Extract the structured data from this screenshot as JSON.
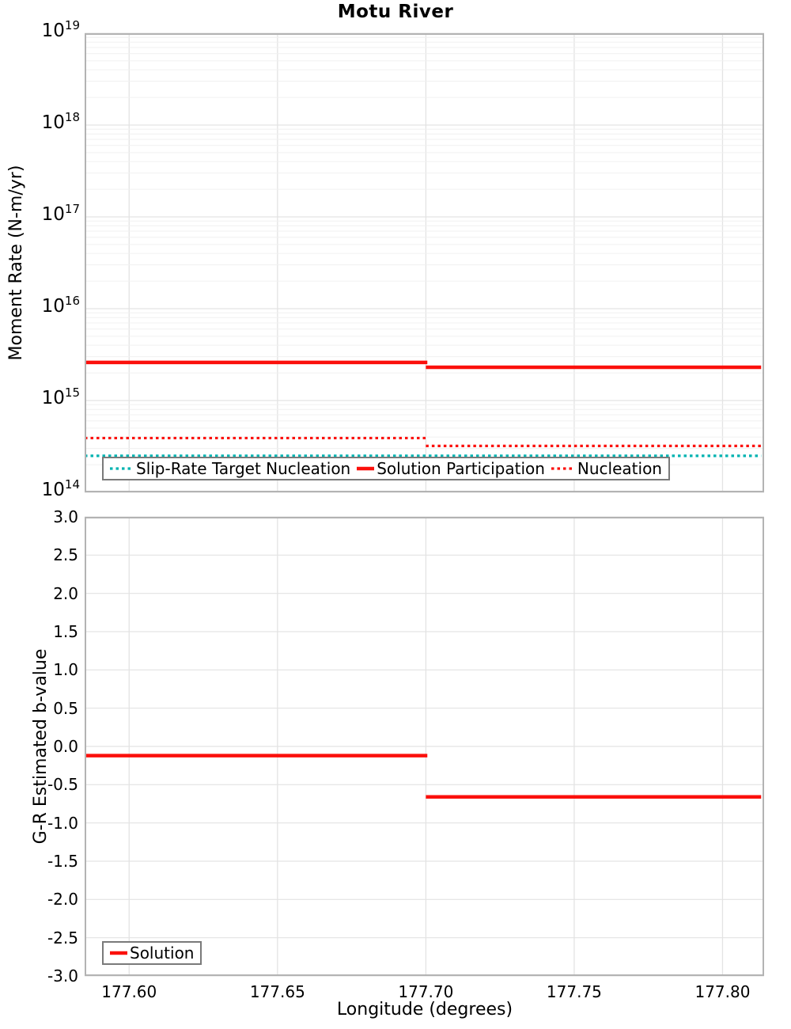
{
  "title": "Motu River",
  "colors": {
    "red": "#fb100c",
    "cyan": "#00b3b1",
    "frame": "#b3b3b3",
    "grid_major": "#e3e3e3",
    "grid_minor": "#f0f0f0",
    "legend_border": "#7a7a7a",
    "text": "#000000",
    "background": "#ffffff"
  },
  "chart_data": [
    {
      "name": "moment-rate",
      "type": "line",
      "title": "Motu River",
      "ylabel": "Moment Rate (N-m/yr)",
      "y_scale": "log",
      "y_exp_range": [
        14,
        19
      ],
      "y_tick_base": "10",
      "y_tick_exponents": [
        "19",
        "18",
        "17",
        "16",
        "15",
        "14"
      ],
      "x_range": [
        177.585,
        177.814
      ],
      "x_ticks": [
        "177.60",
        "177.65",
        "177.70",
        "177.75",
        "177.80"
      ],
      "grid": true,
      "legend_position": "bottom-left-horizontal",
      "legend": [
        {
          "label": "Slip-Rate Target Nucleation",
          "color": "cyan",
          "style": "dotted"
        },
        {
          "label": "Solution Participation",
          "color": "red",
          "style": "solid"
        },
        {
          "label": "Nucleation",
          "color": "red",
          "style": "dotted"
        }
      ],
      "series": [
        {
          "name": "Slip-Rate Target Nucleation",
          "color": "cyan",
          "style": "dotted",
          "width": 3.2,
          "segments": [
            {
              "x0": 177.585,
              "x1": 177.813,
              "y": 250000000000000.0
            }
          ]
        },
        {
          "name": "Nucleation",
          "color": "red",
          "style": "dotted",
          "width": 3.2,
          "segments": [
            {
              "x0": 177.585,
              "x1": 177.7005,
              "y": 390000000000000.0
            },
            {
              "x0": 177.7,
              "x1": 177.813,
              "y": 320000000000000.0
            }
          ]
        },
        {
          "name": "Solution Participation",
          "color": "red",
          "style": "solid",
          "width": 4.5,
          "segments": [
            {
              "x0": 177.585,
              "x1": 177.7005,
              "y": 2600000000000000.0
            },
            {
              "x0": 177.7,
              "x1": 177.813,
              "y": 2300000000000000.0
            }
          ]
        }
      ]
    },
    {
      "name": "b-value",
      "type": "line",
      "xlabel": "Longitude (degrees)",
      "ylabel": "G-R Estimated b-value",
      "y_scale": "linear",
      "y_range": [
        -3.0,
        3.0
      ],
      "y_ticks": [
        "3.0",
        "2.5",
        "2.0",
        "1.5",
        "1.0",
        "0.5",
        "0.0",
        "-0.5",
        "-1.0",
        "-1.5",
        "-2.0",
        "-2.5",
        "-3.0"
      ],
      "x_range": [
        177.585,
        177.814
      ],
      "x_ticks": [
        "177.60",
        "177.65",
        "177.70",
        "177.75",
        "177.80"
      ],
      "grid": true,
      "legend_position": "bottom-left",
      "legend": [
        {
          "label": "Solution",
          "color": "red",
          "style": "solid"
        }
      ],
      "series": [
        {
          "name": "Solution",
          "color": "red",
          "style": "solid",
          "width": 4.5,
          "segments": [
            {
              "x0": 177.585,
              "x1": 177.7005,
              "y": -0.12
            },
            {
              "x0": 177.7,
              "x1": 177.813,
              "y": -0.66
            }
          ]
        }
      ]
    }
  ]
}
